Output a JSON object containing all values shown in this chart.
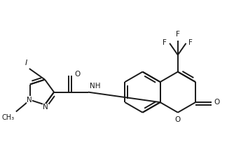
{
  "bg_color": "#ffffff",
  "line_color": "#1a1a1a",
  "line_width": 1.4,
  "font_size": 7.5,
  "figsize": [
    3.54,
    2.4
  ],
  "dpi": 100,
  "xlim": [
    0,
    3.54
  ],
  "ylim": [
    0,
    2.4
  ]
}
